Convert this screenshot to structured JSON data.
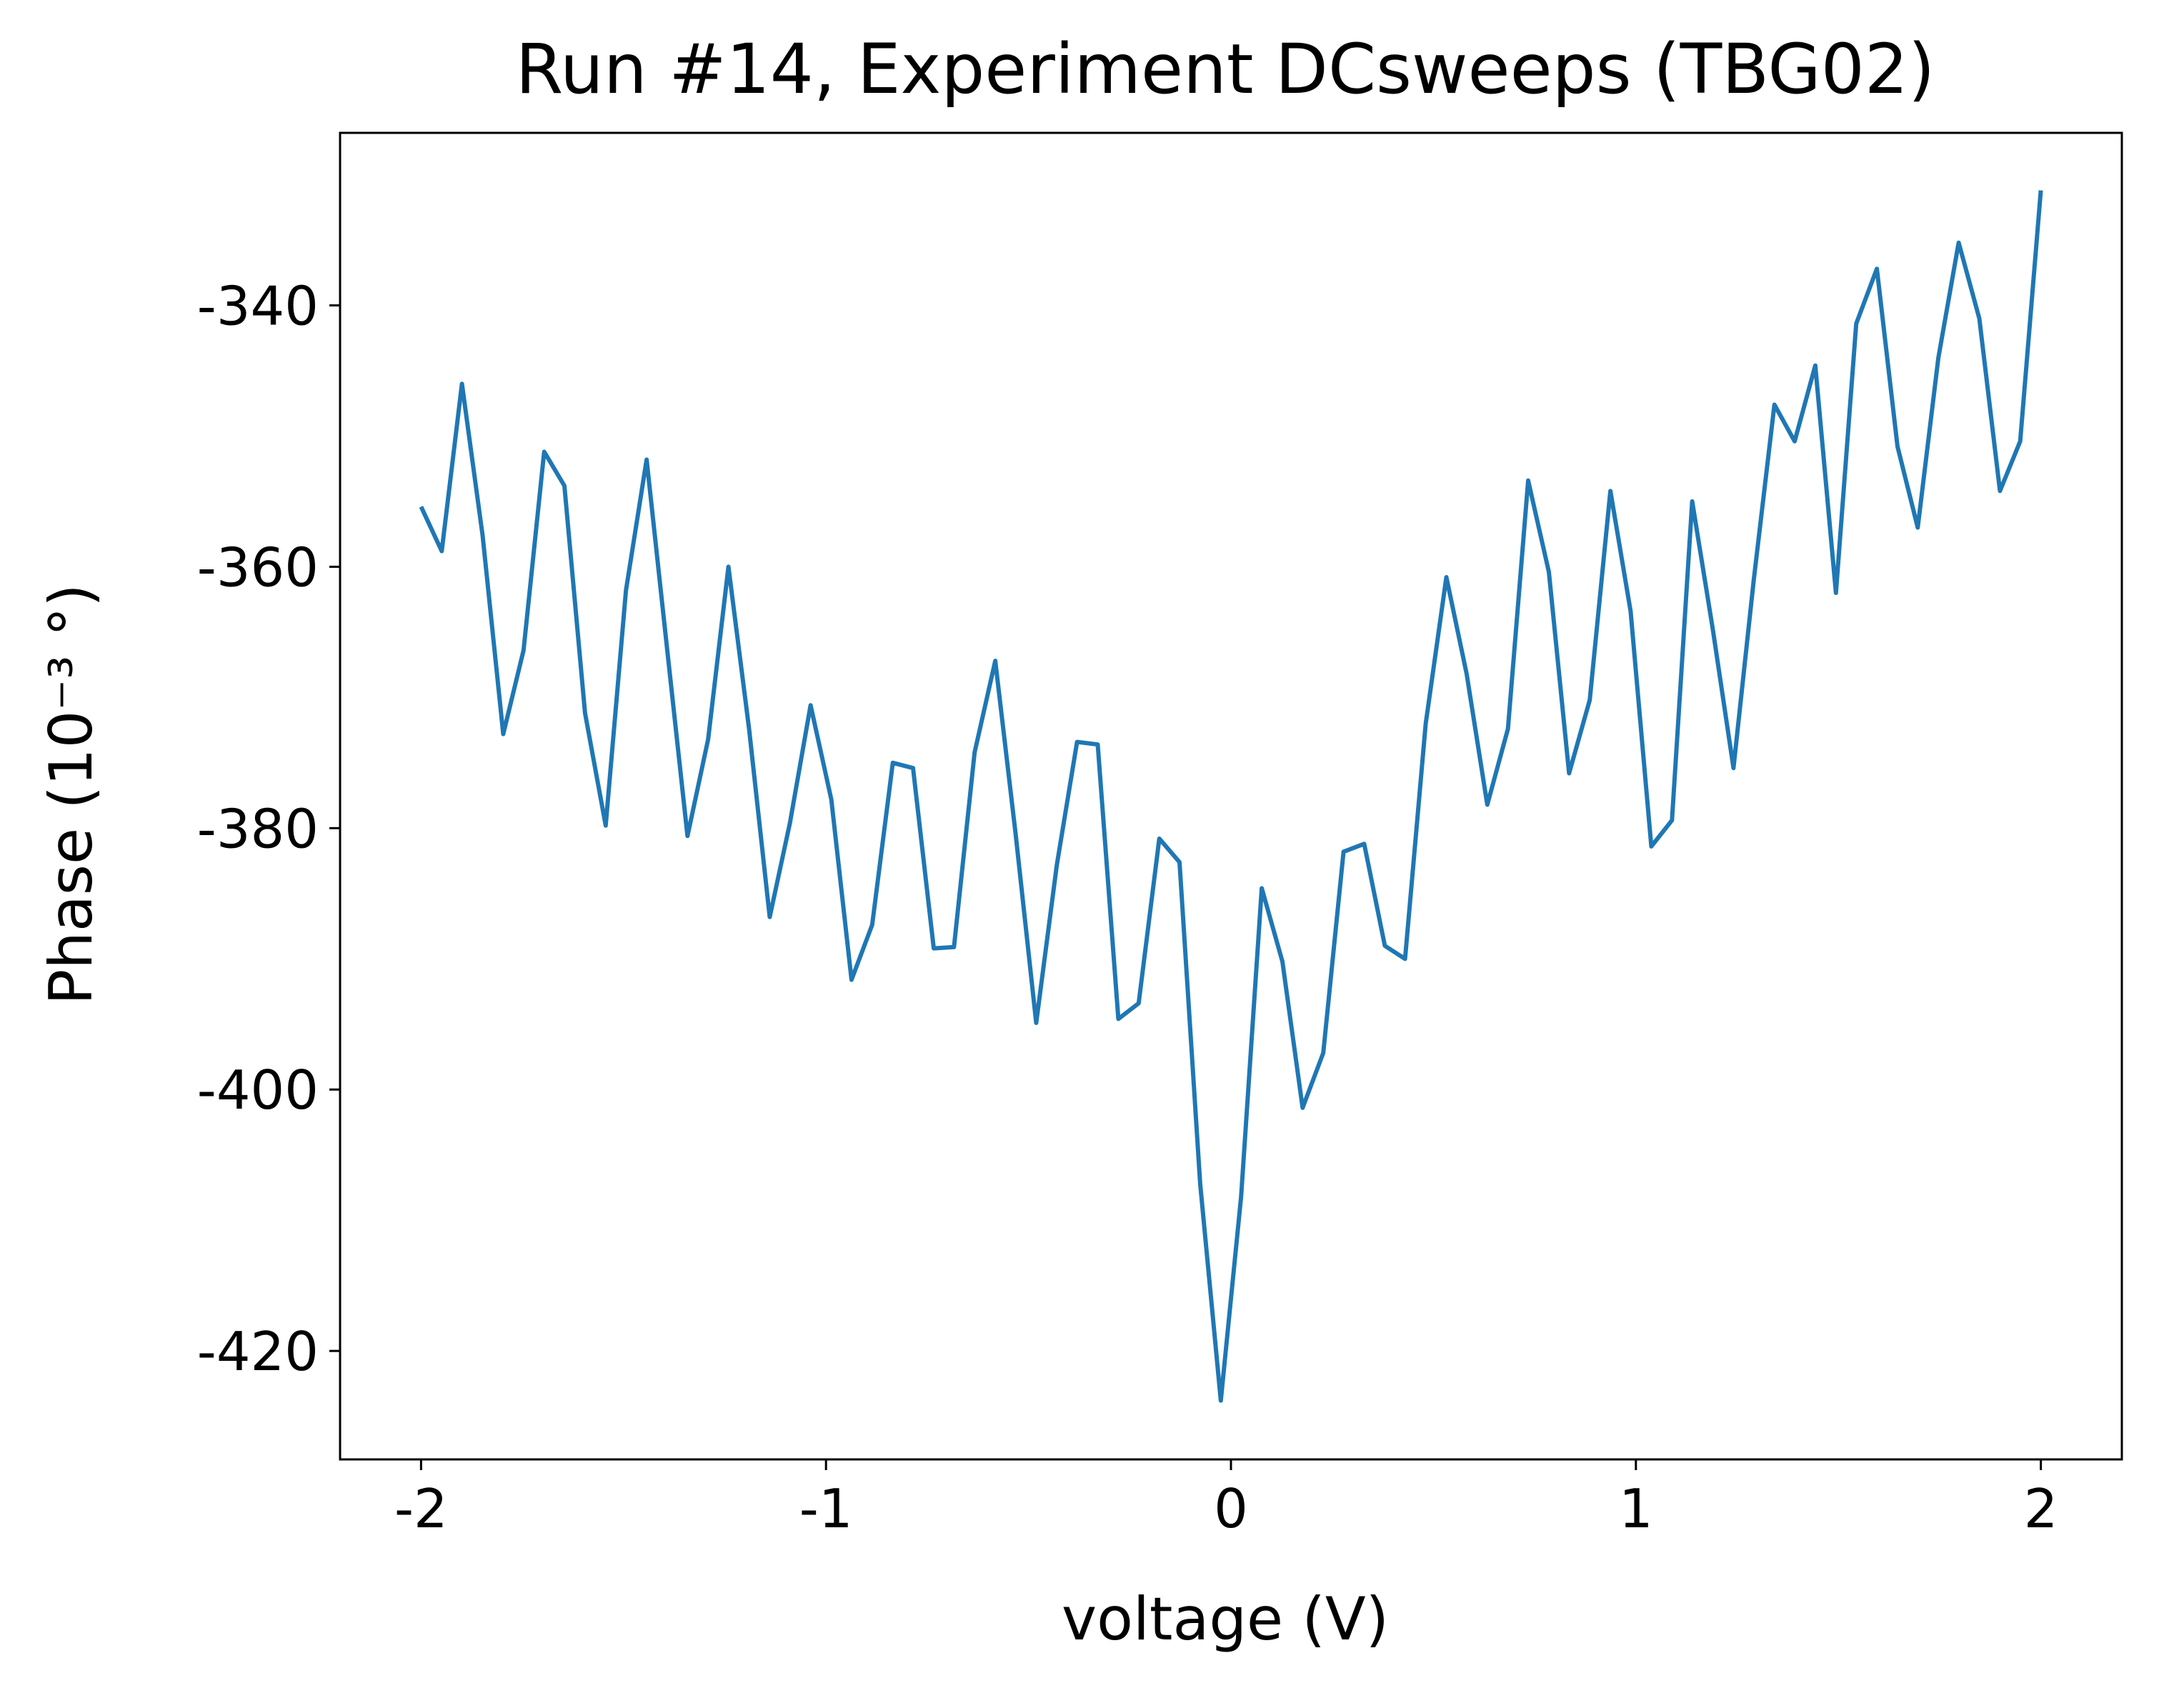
{
  "chart_data": {
    "type": "line",
    "title": "Run #14, Experiment DCsweeps (TBG02)",
    "xlabel": "voltage (V)",
    "ylabel": "Phase (10⁻³ °)",
    "xlim": [
      -2.2,
      2.2
    ],
    "ylim": [
      -428.3,
      -326.8
    ],
    "xticks": [
      -2,
      -1,
      0,
      1,
      2
    ],
    "xtick_labels": [
      "-2",
      "-1",
      "0",
      "1",
      "2"
    ],
    "yticks": [
      -420,
      -400,
      -380,
      -360,
      -340
    ],
    "ytick_labels": [
      "-420",
      "-400",
      "-380",
      "-360",
      "-340"
    ],
    "grid": false,
    "legend": "none",
    "color": "#1f77b4",
    "series": [
      {
        "x": [
          -2.0,
          -1.949,
          -1.899,
          -1.848,
          -1.797,
          -1.747,
          -1.696,
          -1.646,
          -1.595,
          -1.544,
          -1.494,
          -1.443,
          -1.392,
          -1.342,
          -1.291,
          -1.241,
          -1.19,
          -1.139,
          -1.089,
          -1.038,
          -0.987,
          -0.937,
          -0.886,
          -0.835,
          -0.785,
          -0.734,
          -0.684,
          -0.633,
          -0.582,
          -0.532,
          -0.481,
          -0.43,
          -0.38,
          -0.329,
          -0.278,
          -0.228,
          -0.177,
          -0.127,
          -0.076,
          -0.025,
          0.025,
          0.076,
          0.127,
          0.177,
          0.228,
          0.278,
          0.329,
          0.38,
          0.43,
          0.481,
          0.532,
          0.582,
          0.633,
          0.684,
          0.734,
          0.785,
          0.835,
          0.886,
          0.937,
          0.987,
          1.038,
          1.089,
          1.139,
          1.19,
          1.241,
          1.291,
          1.342,
          1.392,
          1.443,
          1.494,
          1.544,
          1.595,
          1.646,
          1.696,
          1.747,
          1.797,
          1.848,
          1.899,
          1.949,
          2.0
        ],
        "y": [
          -355.4,
          -358.8,
          -346.0,
          -357.6,
          -372.8,
          -366.4,
          -351.2,
          -353.8,
          -371.2,
          -379.8,
          -361.8,
          -351.8,
          -366.4,
          -380.6,
          -373.2,
          -360.0,
          -372.4,
          -386.8,
          -379.6,
          -370.6,
          -377.8,
          -391.6,
          -387.4,
          -375.0,
          -375.4,
          -389.2,
          -389.1,
          -374.2,
          -367.2,
          -380.4,
          -394.9,
          -382.8,
          -373.4,
          -373.6,
          -394.6,
          -393.4,
          -380.8,
          -382.6,
          -407.2,
          -423.8,
          -408.2,
          -384.6,
          -390.2,
          -401.4,
          -397.2,
          -381.8,
          -381.2,
          -389.0,
          -390.0,
          -372.0,
          -360.8,
          -368.2,
          -378.2,
          -372.4,
          -353.4,
          -360.4,
          -375.8,
          -370.2,
          -354.2,
          -363.4,
          -381.4,
          -379.4,
          -355.0,
          -364.8,
          -375.4,
          -361.0,
          -347.6,
          -350.4,
          -344.6,
          -362.0,
          -341.4,
          -337.2,
          -350.8,
          -357.0,
          -344.0,
          -335.2,
          -341.0,
          -354.2,
          -350.4,
          -331.2
        ]
      }
    ]
  }
}
